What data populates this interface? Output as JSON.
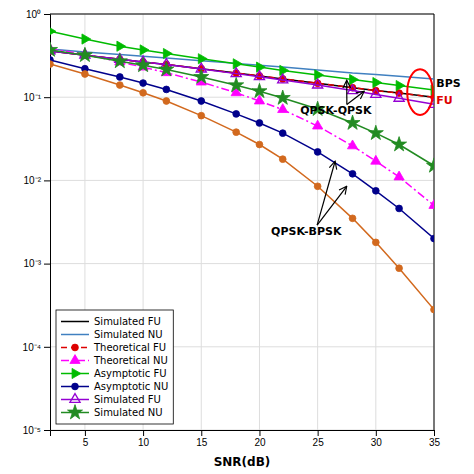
{
  "chart_data": {
    "type": "line",
    "log": "y",
    "grid": true,
    "legend": "lower left",
    "xlabel": "SNR(dB)",
    "x": [
      2,
      5,
      8,
      10,
      12,
      15,
      18,
      20,
      22,
      25,
      28,
      30,
      32,
      35
    ],
    "xlim": [
      2,
      35
    ],
    "xticks": [
      5,
      10,
      15,
      20,
      25,
      30,
      35
    ],
    "ylim": [
      1e-05,
      1.0
    ],
    "yticks": [
      {
        "value": 1e-05,
        "label": "10⁻⁵"
      },
      {
        "value": 0.0001,
        "label": "10⁻⁴"
      },
      {
        "value": 0.001,
        "label": "10⁻³"
      },
      {
        "value": 0.01,
        "label": "10⁻²"
      },
      {
        "value": 0.1,
        "label": "10⁻¹"
      },
      {
        "value": 1,
        "label": "10⁰"
      }
    ],
    "series": [
      {
        "name": "Simulated FU",
        "color": "#000000",
        "line_style": "solid",
        "marker": "none",
        "values": [
          0.36,
          0.32,
          0.285,
          0.265,
          0.248,
          0.22,
          0.195,
          0.18,
          0.166,
          0.147,
          0.13,
          0.12,
          0.112,
          0.1
        ]
      },
      {
        "name": "Simulated NU",
        "color": "#4080c0",
        "line_style": "solid",
        "marker": "none",
        "values": [
          0.38,
          0.35,
          0.325,
          0.31,
          0.295,
          0.275,
          0.255,
          0.242,
          0.23,
          0.213,
          0.195,
          0.187,
          0.178,
          0.165
        ]
      },
      {
        "name": "Theoretical FU",
        "color": "#dd0000",
        "line_style": "dashed",
        "marker": "circle",
        "values": [
          0.36,
          0.32,
          0.285,
          0.265,
          0.248,
          0.22,
          0.195,
          0.18,
          0.166,
          0.147,
          0.13,
          0.12,
          0.112,
          0.1
        ]
      },
      {
        "name": "Theoretical NU",
        "color": "#ff00ff",
        "line_style": "dashdot",
        "marker": "triangle-up",
        "values": [
          0.38,
          0.33,
          0.265,
          0.23,
          0.197,
          0.152,
          0.113,
          0.09,
          0.071,
          0.045,
          0.026,
          0.017,
          0.011,
          0.005
        ]
      },
      {
        "name": "Asymptotic FU",
        "color": "#00bb00",
        "line_style": "solid",
        "marker": "triangle-right",
        "values": [
          0.62,
          0.5,
          0.41,
          0.37,
          0.335,
          0.29,
          0.252,
          0.23,
          0.21,
          0.185,
          0.163,
          0.15,
          0.138,
          0.122
        ]
      },
      {
        "name": "Asymptotic NU",
        "color": "#00008b",
        "line_style": "solid",
        "marker": "circle",
        "values": [
          0.28,
          0.22,
          0.175,
          0.148,
          0.124,
          0.09,
          0.063,
          0.049,
          0.037,
          0.022,
          0.012,
          0.0075,
          0.0046,
          0.002
        ]
      },
      {
        "name": "Simulated FU",
        "color": "#9400d3",
        "line_style": "solid",
        "marker": "triangle-up-open",
        "values": [
          0.36,
          0.32,
          0.285,
          0.265,
          0.247,
          0.218,
          0.192,
          0.176,
          0.161,
          0.14,
          0.12,
          0.108,
          0.097,
          0.082
        ]
      },
      {
        "name": "Simulated NU",
        "color": "#228b22",
        "line_style": "solid",
        "marker": "star",
        "values": [
          0.37,
          0.32,
          0.27,
          0.242,
          0.215,
          0.175,
          0.139,
          0.118,
          0.098,
          0.072,
          0.049,
          0.037,
          0.027,
          0.015
        ]
      },
      {
        "color": "#d2691e",
        "line_style": "solid",
        "marker": "circle",
        "values": [
          0.25,
          0.19,
          0.14,
          0.113,
          0.09,
          0.06,
          0.038,
          0.027,
          0.018,
          0.0085,
          0.0035,
          0.0018,
          0.00088,
          0.00028
        ]
      }
    ],
    "annotations": [
      {
        "text": "QPSK-QPSK",
        "x": 23.5,
        "y": 0.062,
        "arrows": [
          [
            27.5,
            0.16
          ],
          [
            29.0,
            0.118
          ]
        ]
      },
      {
        "text": "QPSK-BPSK",
        "x": 21.0,
        "y": 0.0022,
        "arrows": [
          [
            26.5,
            0.017
          ],
          [
            27.5,
            0.0085
          ]
        ]
      },
      {
        "text": "BPS",
        "x": 35.2,
        "y": 0.145
      },
      {
        "text": "FU",
        "x": 35.2,
        "y": 0.09,
        "color": "#dd0000"
      },
      {
        "shape": "ellipse",
        "x": 33.8,
        "y": 0.115,
        "width": 2.2,
        "height_log": 0.55,
        "color": "#ff0000"
      }
    ]
  }
}
